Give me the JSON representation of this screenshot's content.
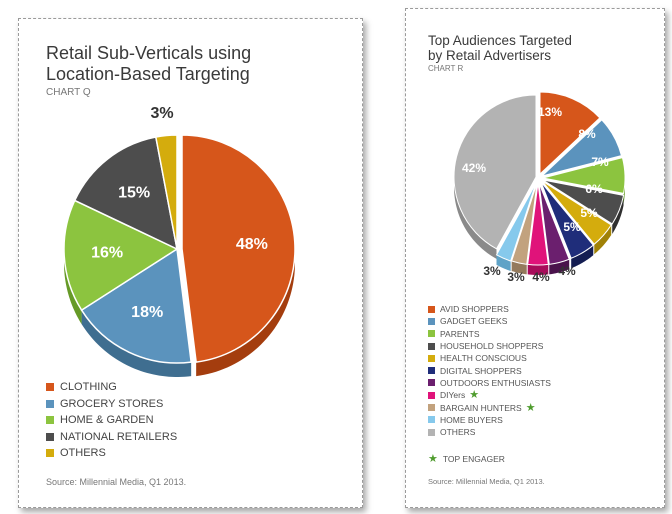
{
  "chart_q": {
    "title_line1": "Retail Sub-Verticals using",
    "title_line2": "Location-Based Targeting",
    "subtitle": "CHART Q",
    "source": "Source: Millennial Media, Q1 2013."
  },
  "chart_r": {
    "title_line1": "Top Audiences Targeted",
    "title_line2": "by Retail Advertisers",
    "subtitle": "CHART R",
    "source": "Source: Millennial Media, Q1 2013.",
    "top_engager_label": "TOP ENGAGER"
  },
  "chart_data": [
    {
      "type": "pie",
      "title": "Retail Sub-Verticals using Location-Based Targeting",
      "subtitle": "CHART Q",
      "legend_placement": "bottom",
      "slices": [
        {
          "label": "CLOTHING",
          "value": 48,
          "display": "48%",
          "color": "#d6561b",
          "side": "#a43d0e"
        },
        {
          "label": "GROCERY STORES",
          "value": 18,
          "display": "18%",
          "color": "#5b93bd",
          "side": "#3f6e90"
        },
        {
          "label": "HOME & GARDEN",
          "value": 16,
          "display": "16%",
          "color": "#8cc43f",
          "side": "#669a27"
        },
        {
          "label": "NATIONAL RETAILERS",
          "value": 15,
          "display": "15%",
          "color": "#4d4d4d",
          "side": "#2f2f2f"
        },
        {
          "label": "OTHERS",
          "value": 3,
          "display": "3%",
          "color": "#d4ac0d",
          "side": "#a08106"
        }
      ]
    },
    {
      "type": "pie",
      "title": "Top Audiences Targeted by Retail Advertisers",
      "subtitle": "CHART R",
      "legend_placement": "bottom",
      "slices": [
        {
          "label": "AVID SHOPPERS",
          "value": 13,
          "display": "13%",
          "color": "#d6561b",
          "side": "#a43d0e",
          "star": false
        },
        {
          "label": "GADGET GEEKS",
          "value": 8,
          "display": "8%",
          "color": "#5b93bd",
          "side": "#3f6e90",
          "star": false
        },
        {
          "label": "PARENTS",
          "value": 7,
          "display": "7%",
          "color": "#8cc43f",
          "side": "#669a27",
          "star": false
        },
        {
          "label": "HOUSEHOLD SHOPPERS",
          "value": 6,
          "display": "6%",
          "color": "#4d4d4d",
          "side": "#2f2f2f",
          "star": false
        },
        {
          "label": "HEALTH CONSCIOUS",
          "value": 5,
          "display": "5%",
          "color": "#d4ac0d",
          "side": "#a08106",
          "star": false
        },
        {
          "label": "DIGITAL SHOPPERS",
          "value": 5,
          "display": "5%",
          "color": "#1f2d7a",
          "side": "#141d52",
          "star": false
        },
        {
          "label": "OUTDOORS ENTHUSIASTS",
          "value": 4,
          "display": "4%",
          "color": "#6b1f6e",
          "side": "#4a134c",
          "star": false
        },
        {
          "label": "DIYers",
          "value": 4,
          "display": "4%",
          "color": "#e0137a",
          "side": "#a80c5a",
          "star": true
        },
        {
          "label": "BARGAIN HUNTERS",
          "value": 3,
          "display": "3%",
          "color": "#c2a27e",
          "side": "#947a5c",
          "star": true
        },
        {
          "label": "HOME BUYERS",
          "value": 3,
          "display": "3%",
          "color": "#86c9ec",
          "side": "#5fa3c7",
          "star": false
        },
        {
          "label": "OTHERS",
          "value": 42,
          "display": "42%",
          "color": "#b3b3b3",
          "side": "#8a8a8a",
          "star": false
        }
      ]
    }
  ]
}
